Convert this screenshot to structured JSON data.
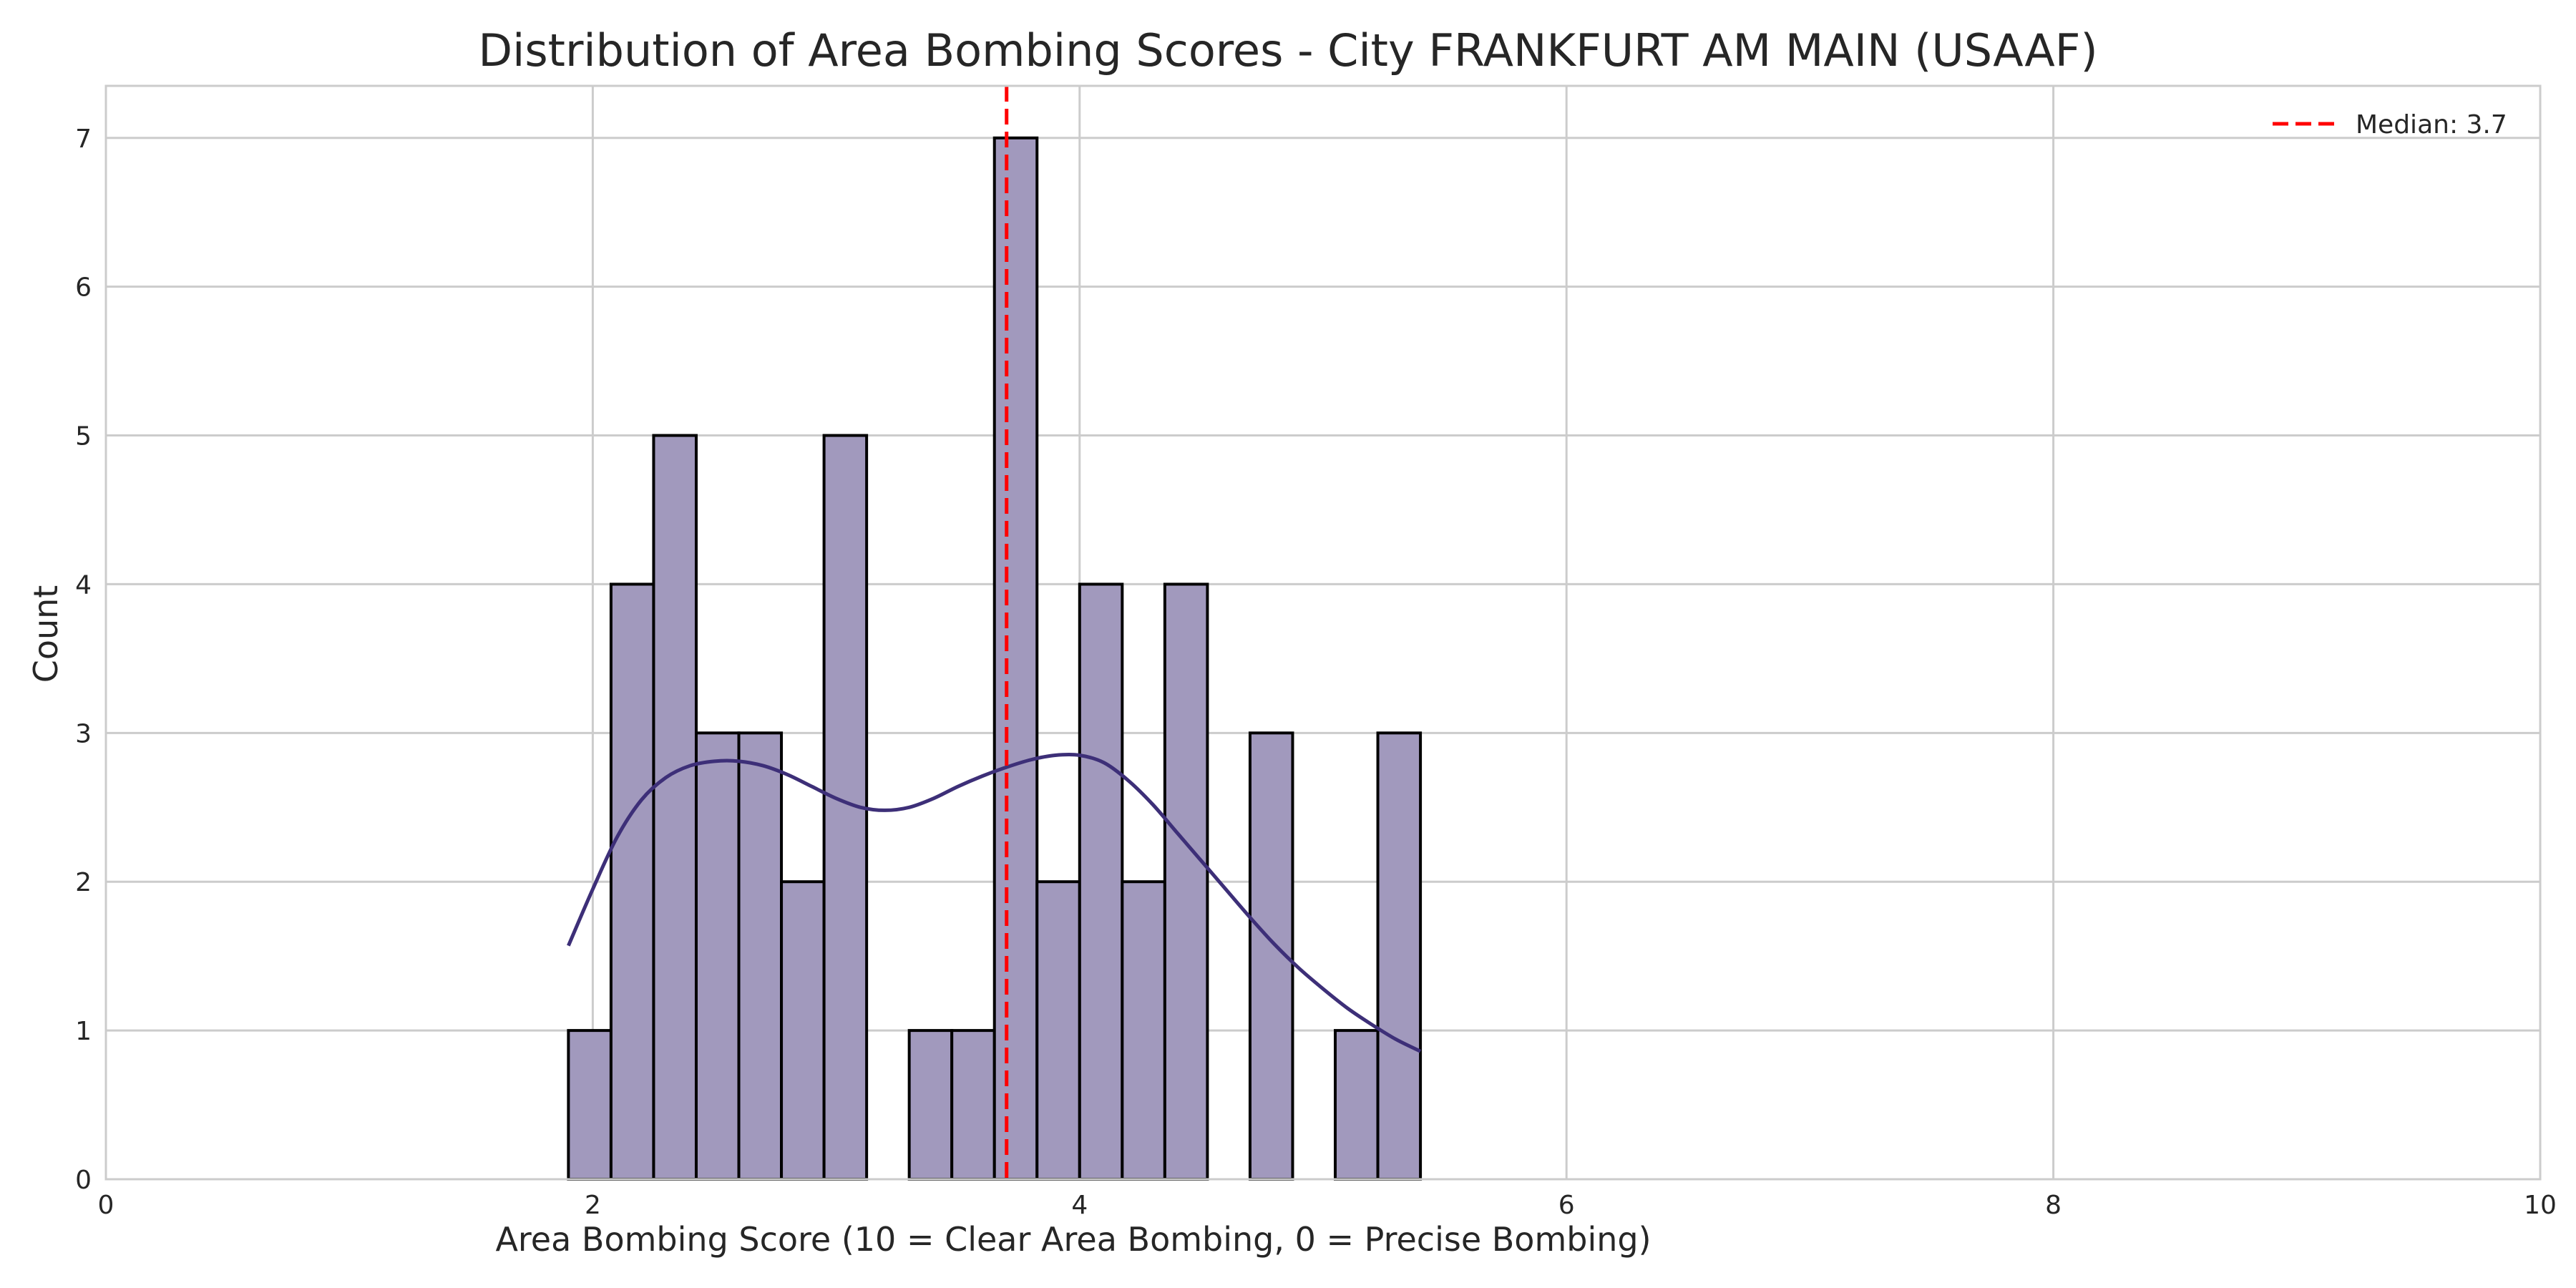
{
  "chart_data": {
    "type": "bar",
    "title": "Distribution of Area Bombing Scores - City FRANKFURT AM MAIN (USAAF)",
    "xlabel": "Area Bombing Score (10 = Clear Area Bombing, 0 = Precise Bombing)",
    "ylabel": "Count",
    "xlim": [
      0,
      10
    ],
    "ylim": [
      0,
      7.35
    ],
    "x_ticks": [
      0,
      2,
      4,
      6,
      8,
      10
    ],
    "y_ticks": [
      0,
      1,
      2,
      3,
      4,
      5,
      6,
      7
    ],
    "grid": true,
    "legend_position": "top-right",
    "bins": {
      "start": 1.9,
      "width": 0.175,
      "counts": [
        1,
        4,
        5,
        3,
        3,
        2,
        5,
        0,
        1,
        1,
        7,
        2,
        4,
        2,
        4,
        0,
        3,
        0,
        1,
        3
      ]
    },
    "kde": {
      "x": [
        1.9,
        2.0,
        2.1,
        2.2,
        2.3,
        2.4,
        2.5,
        2.6,
        2.7,
        2.8,
        2.9,
        3.0,
        3.1,
        3.2,
        3.3,
        3.4,
        3.5,
        3.6,
        3.7,
        3.8,
        3.9,
        4.0,
        4.1,
        4.2,
        4.3,
        4.4,
        4.5,
        4.6,
        4.7,
        4.8,
        4.9,
        5.0,
        5.1,
        5.2,
        5.3,
        5.4
      ],
      "y": [
        1.57,
        1.95,
        2.3,
        2.55,
        2.7,
        2.78,
        2.81,
        2.81,
        2.78,
        2.72,
        2.64,
        2.56,
        2.5,
        2.48,
        2.5,
        2.56,
        2.64,
        2.71,
        2.77,
        2.82,
        2.85,
        2.85,
        2.8,
        2.68,
        2.52,
        2.33,
        2.14,
        1.95,
        1.76,
        1.58,
        1.42,
        1.28,
        1.15,
        1.04,
        0.94,
        0.86
      ]
    },
    "median": {
      "value": 3.7,
      "label": "Median: 3.7"
    },
    "colors": {
      "bar_fill": "#a199bd",
      "bar_edge": "#000000",
      "kde_line": "#3d2f78",
      "median_line": "#ff0000",
      "grid": "#cccccc",
      "axis": "#cccccc"
    }
  }
}
